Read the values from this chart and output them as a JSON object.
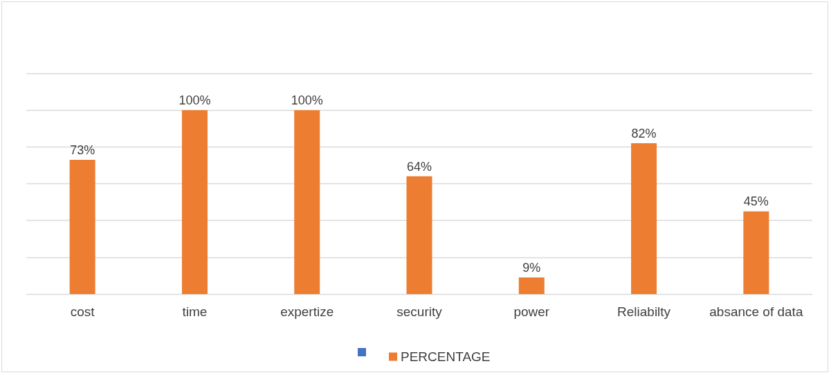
{
  "chart_data": {
    "type": "bar",
    "categories": [
      "cost",
      "time",
      "expertize",
      "security",
      "power",
      "Reliabilty",
      "absance of data"
    ],
    "series": [
      {
        "color": "#4472c4",
        "values": [
          null,
          null,
          null,
          null,
          null,
          null,
          null
        ]
      },
      {
        "name": "PERCENTAGE",
        "color": "#ed7d31",
        "values": [
          73,
          100,
          100,
          64,
          9,
          82,
          45
        ],
        "value_labels": [
          "73%",
          "100%",
          "100%",
          "64%",
          "9%",
          "82%",
          "45%"
        ]
      }
    ],
    "ylim": [
      0,
      120
    ],
    "yticks": [
      {
        "value": 0,
        "label": null
      },
      {
        "value": 20,
        "label": null
      },
      {
        "value": 40,
        "label": null
      },
      {
        "value": 60,
        "label": null
      },
      {
        "value": 80,
        "label": null
      },
      {
        "value": 100,
        "label": null
      },
      {
        "value": 120,
        "label": null
      }
    ],
    "grid": "y",
    "tick_labels": "x",
    "legend": "bottom"
  }
}
